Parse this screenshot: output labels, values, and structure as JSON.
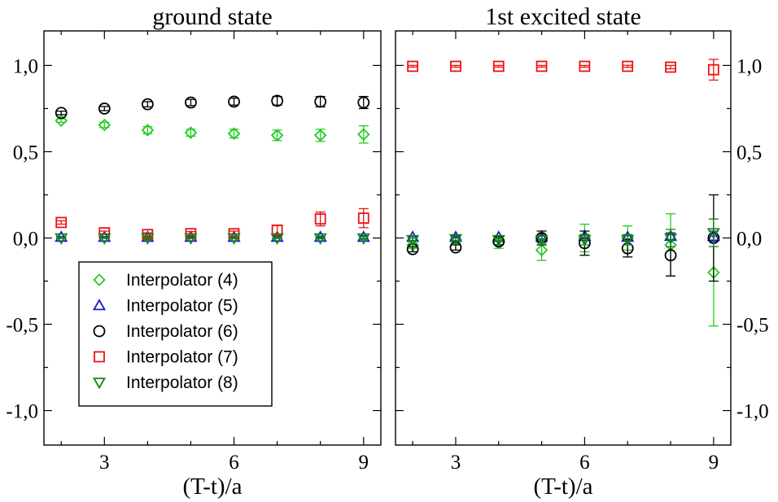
{
  "chart_data": [
    {
      "type": "scatter",
      "title": "ground state",
      "xlabel": "(T-t)/a",
      "ylabel": "",
      "xlim": [
        1.6,
        9.4
      ],
      "ylim": [
        -1.2,
        1.2
      ],
      "xticks": [
        3,
        6,
        9
      ],
      "xtick_labels": [
        "3",
        "6",
        "9"
      ],
      "yticks": [
        -1.0,
        -0.5,
        0.0,
        0.5,
        1.0
      ],
      "ytick_labels": [
        "-1,0",
        "-0,5",
        "0,0",
        "0,5",
        "1,0"
      ],
      "ytick_side": "left",
      "legend_position": "bottom-left",
      "series": [
        {
          "name": "Interpolator (4)",
          "marker": "diamond",
          "color": "#22cc22",
          "x": [
            2,
            3,
            4,
            5,
            6,
            7,
            8,
            9
          ],
          "y": [
            0.68,
            0.655,
            0.625,
            0.61,
            0.605,
            0.595,
            0.595,
            0.6
          ],
          "err": [
            0.01,
            0.015,
            0.02,
            0.02,
            0.025,
            0.03,
            0.035,
            0.05
          ]
        },
        {
          "name": "Interpolator (5)",
          "marker": "triangle-up",
          "color": "#1a1acc",
          "x": [
            2,
            3,
            4,
            5,
            6,
            7,
            8,
            9
          ],
          "y": [
            0.005,
            0.005,
            0.005,
            0.005,
            0.005,
            0.005,
            0.005,
            0.005
          ],
          "err": [
            0.003,
            0.003,
            0.003,
            0.003,
            0.003,
            0.003,
            0.005,
            0.008
          ]
        },
        {
          "name": "Interpolator (6)",
          "marker": "circle",
          "color": "#000000",
          "x": [
            2,
            3,
            4,
            5,
            6,
            7,
            8,
            9
          ],
          "y": [
            0.725,
            0.75,
            0.775,
            0.785,
            0.79,
            0.795,
            0.79,
            0.785
          ],
          "err": [
            0.01,
            0.012,
            0.015,
            0.018,
            0.02,
            0.025,
            0.03,
            0.035
          ]
        },
        {
          "name": "Interpolator (7)",
          "marker": "square",
          "color": "#ee1111",
          "x": [
            2,
            3,
            4,
            5,
            6,
            7,
            8,
            9
          ],
          "y": [
            0.09,
            0.03,
            0.02,
            0.025,
            0.025,
            0.045,
            0.11,
            0.115
          ],
          "err": [
            0.01,
            0.01,
            0.01,
            0.012,
            0.015,
            0.03,
            0.04,
            0.055
          ]
        },
        {
          "name": "Interpolator (8)",
          "marker": "triangle-down",
          "color": "#118811",
          "x": [
            2,
            3,
            4,
            5,
            6,
            7,
            8,
            9
          ],
          "y": [
            0.0,
            0.0,
            0.0,
            0.0,
            0.0,
            0.0,
            0.0,
            0.0
          ],
          "err": [
            0.003,
            0.003,
            0.003,
            0.003,
            0.003,
            0.003,
            0.005,
            0.008
          ]
        }
      ]
    },
    {
      "type": "scatter",
      "title": "1st excited state",
      "xlabel": "(T-t)/a",
      "ylabel": "",
      "xlim": [
        1.6,
        9.4
      ],
      "ylim": [
        -1.2,
        1.2
      ],
      "xticks": [
        3,
        6,
        9
      ],
      "xtick_labels": [
        "3",
        "6",
        "9"
      ],
      "yticks": [
        -1.0,
        -0.5,
        0.0,
        0.5,
        1.0
      ],
      "ytick_labels": [
        "-1,0",
        "-0,5",
        "0,0",
        "0,5",
        "1,0"
      ],
      "ytick_side": "right",
      "series": [
        {
          "name": "Interpolator (4)",
          "marker": "diamond",
          "color": "#22cc22",
          "x": [
            2,
            3,
            4,
            5,
            6,
            7,
            8,
            9
          ],
          "y": [
            -0.04,
            -0.01,
            -0.03,
            -0.07,
            0.0,
            0.0,
            -0.04,
            -0.2
          ],
          "err": [
            0.02,
            0.02,
            0.03,
            0.06,
            0.08,
            0.07,
            0.18,
            0.31
          ]
        },
        {
          "name": "Interpolator (5)",
          "marker": "triangle-up",
          "color": "#1a1acc",
          "x": [
            2,
            3,
            4,
            5,
            6,
            7,
            8,
            9
          ],
          "y": [
            0.005,
            0.005,
            0.005,
            0.005,
            0.01,
            0.005,
            0.01,
            0.01
          ],
          "err": [
            0.005,
            0.005,
            0.005,
            0.01,
            0.01,
            0.01,
            0.02,
            0.03
          ]
        },
        {
          "name": "Interpolator (6)",
          "marker": "circle",
          "color": "#000000",
          "x": [
            2,
            3,
            4,
            5,
            6,
            7,
            8,
            9
          ],
          "y": [
            -0.065,
            -0.055,
            -0.02,
            0.0,
            -0.03,
            -0.06,
            -0.1,
            0.0
          ],
          "err": [
            0.015,
            0.015,
            0.02,
            0.04,
            0.07,
            0.05,
            0.12,
            0.25
          ]
        },
        {
          "name": "Interpolator (7)",
          "marker": "square",
          "color": "#ee1111",
          "x": [
            2,
            3,
            4,
            5,
            6,
            7,
            8,
            9
          ],
          "y": [
            0.995,
            0.995,
            0.995,
            0.995,
            0.995,
            0.995,
            0.99,
            0.975
          ],
          "err": [
            0.005,
            0.005,
            0.005,
            0.005,
            0.005,
            0.006,
            0.01,
            0.06
          ]
        },
        {
          "name": "Interpolator (8)",
          "marker": "triangle-down",
          "color": "#118811",
          "x": [
            2,
            3,
            4,
            5,
            6,
            7,
            8,
            9
          ],
          "y": [
            -0.01,
            -0.005,
            -0.01,
            -0.01,
            -0.01,
            -0.01,
            0.0,
            0.03
          ],
          "err": [
            0.01,
            0.01,
            0.01,
            0.02,
            0.03,
            0.03,
            0.05,
            0.08
          ]
        }
      ]
    }
  ]
}
